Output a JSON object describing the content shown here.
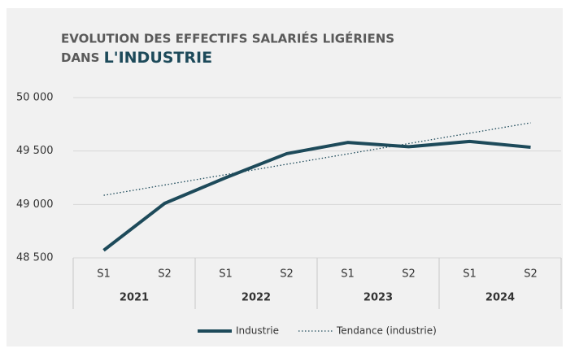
{
  "chart_data": {
    "type": "line",
    "title": "EVOLUTION DES EFFECTIFS SALARIÉS LIGÉRIENS",
    "title_line2": "DANS",
    "title_highlight": "L'INDUSTRIE",
    "categories": [
      "S1",
      "S2",
      "S1",
      "S2",
      "S1",
      "S2",
      "S1",
      "S2"
    ],
    "years": [
      "2021",
      "2022",
      "2023",
      "2024"
    ],
    "series": [
      {
        "name": "Industrie",
        "color": "#1d4a5a",
        "style": "solid",
        "values": [
          48570,
          49010,
          49250,
          49475,
          49580,
          49540,
          49590,
          49535
        ]
      },
      {
        "name": "Tendance (industrie)",
        "color": "#1d4a5a",
        "style": "dotted",
        "values": [
          49085,
          49182,
          49279,
          49376,
          49473,
          49570,
          49667,
          49764
        ]
      }
    ],
    "ylim": [
      48500,
      50000
    ],
    "yticks": [
      {
        "value": 48500,
        "label": "48 500"
      },
      {
        "value": 49000,
        "label": "49 000"
      },
      {
        "value": 49500,
        "label": "49 500"
      },
      {
        "value": 50000,
        "label": "50 000"
      }
    ],
    "grid": true
  }
}
